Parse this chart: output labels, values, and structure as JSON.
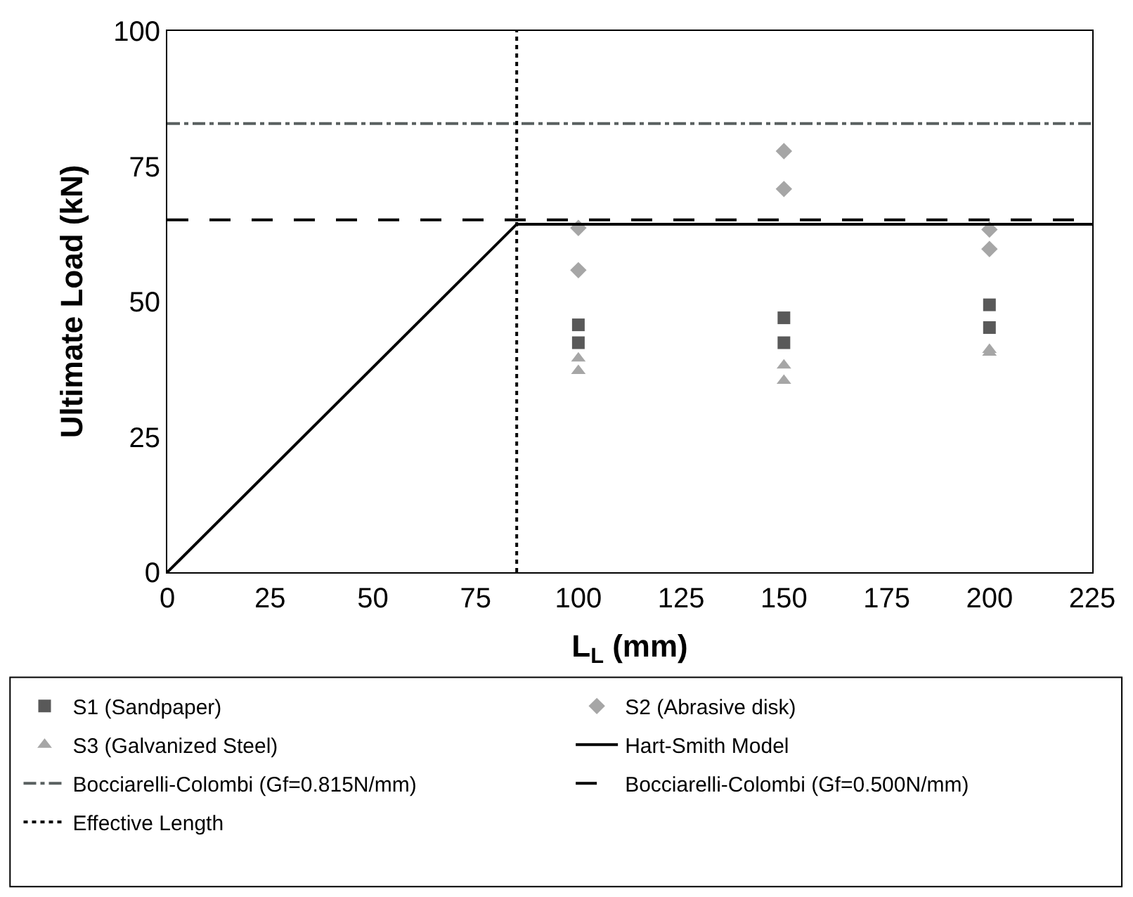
{
  "chart_data": {
    "type": "scatter",
    "xlabel": "L$_{L}$ (mm)",
    "ylabel": "Ultimate Load (kN)",
    "x": [
      100,
      100,
      150,
      150,
      200,
      200
    ],
    "xlim": [
      0,
      225
    ],
    "xticks": [
      0,
      25,
      50,
      75,
      100,
      125,
      150,
      175,
      200,
      225
    ],
    "ylim": [
      0,
      100
    ],
    "yticks": [
      0,
      25,
      50,
      75,
      100
    ],
    "legend": "bottom",
    "series": [
      {
        "name": "S1 (Sandpaper)",
        "marker": "square",
        "color": "#595959",
        "values": [
          45.7,
          42.4,
          47.0,
          42.4,
          49.4,
          45.2
        ]
      },
      {
        "name": "S2 (Abrasive disk)",
        "marker": "diamond",
        "color": "#a6a6a6",
        "values": [
          63.6,
          55.8,
          77.8,
          70.8,
          63.3,
          59.7
        ]
      },
      {
        "name": "S3 (Galvanized Steel)",
        "marker": "triangle",
        "color": "#a6a6a6",
        "values": [
          39.5,
          37.2,
          38.2,
          35.4,
          41.1,
          40.6
        ]
      },
      {
        "name": "Hart-Smith Model",
        "type": "line",
        "line_style": "solid",
        "color": "#000000",
        "x": [
          0,
          85,
          225
        ],
        "values": [
          0,
          64.3,
          64.3
        ]
      },
      {
        "name": "Bocciarelli-Colombi (Gf=0.815N/mm)",
        "type": "line",
        "line_style": "dashdot",
        "color": "#5a6060",
        "x": [
          0,
          225
        ],
        "values": [
          82.9,
          82.9
        ]
      },
      {
        "name": "Bocciarelli-Colombi (Gf=0.500N/mm)",
        "type": "line",
        "line_style": "dashed",
        "color": "#000000",
        "x": [
          0,
          225
        ],
        "values": [
          65.1,
          65.1
        ]
      },
      {
        "name": "Effective Length",
        "type": "line",
        "line_style": "dotted",
        "color": "#000000",
        "x": [
          85,
          85
        ],
        "values": [
          0,
          100
        ]
      }
    ]
  }
}
